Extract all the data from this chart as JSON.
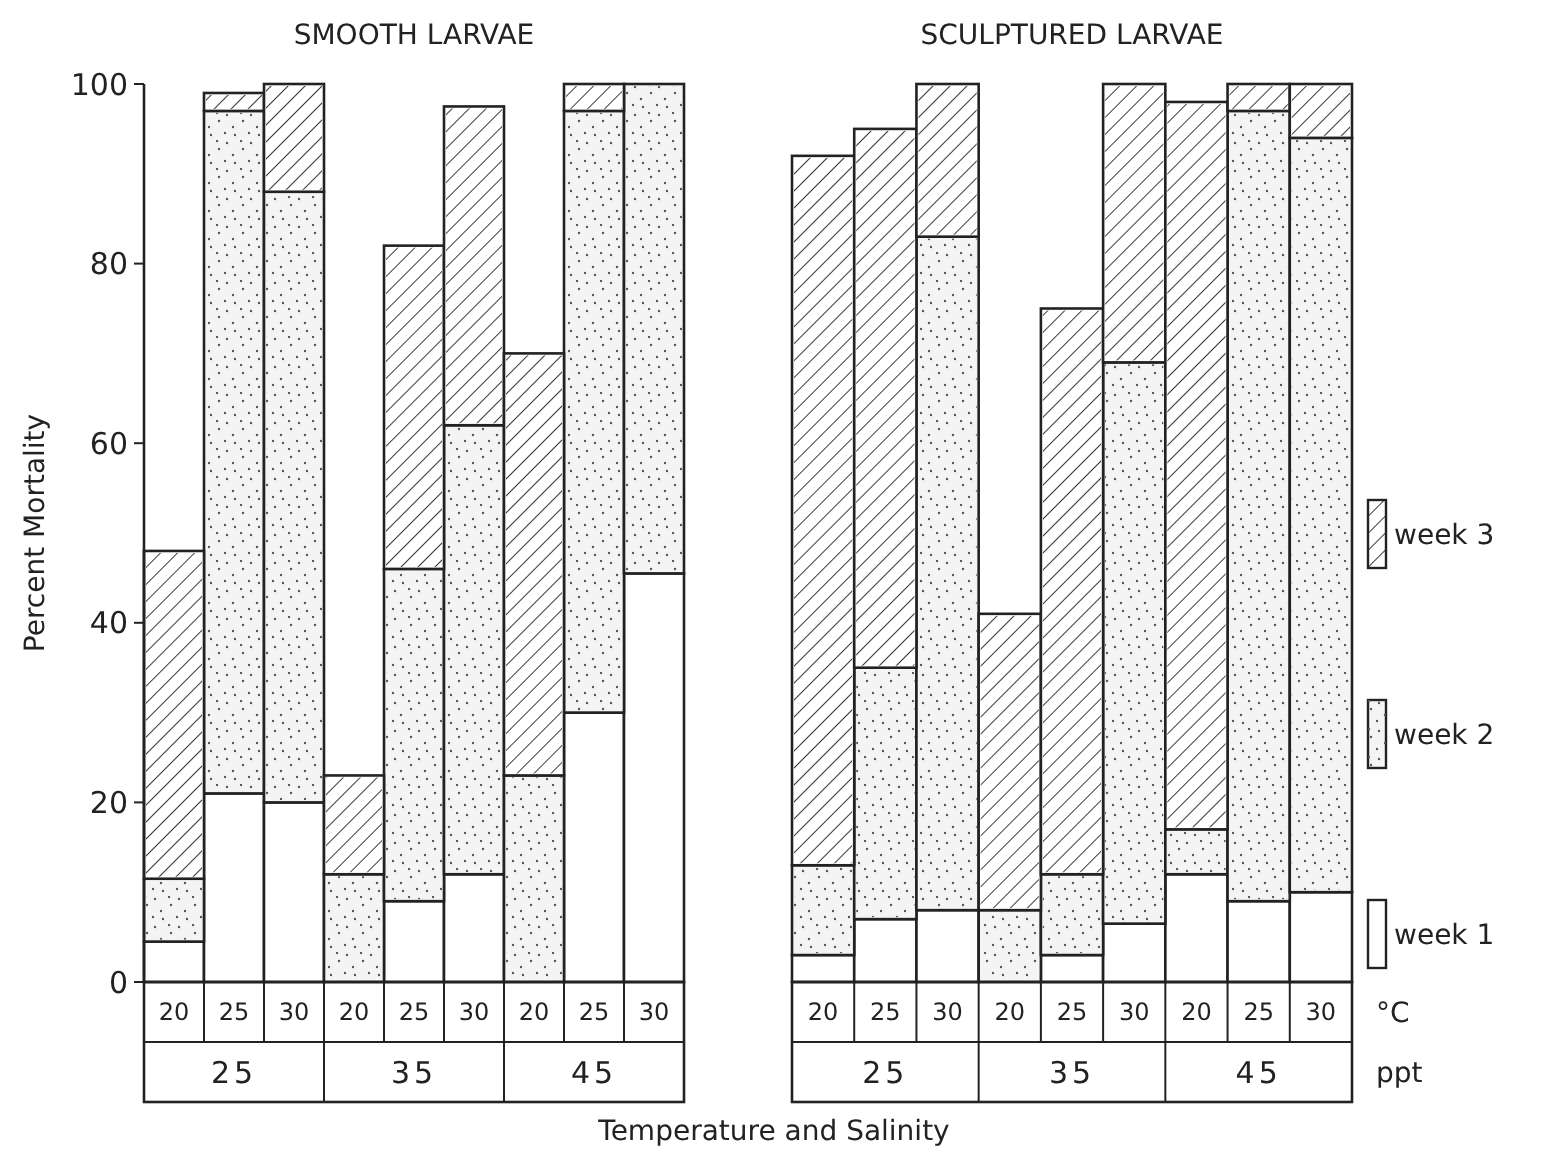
{
  "chart_data": [
    {
      "type": "bar",
      "title": "SMOOTH LARVAE",
      "ylabel": "Percent Mortality",
      "xlabel": "Temperature and Salinity",
      "stacked": true,
      "categories": [
        "20",
        "25",
        "30",
        "20",
        "25",
        "30",
        "20",
        "25",
        "30"
      ],
      "ylim": [
        0,
        100
      ],
      "yticks": [
        0,
        20,
        40,
        60,
        80,
        100
      ],
      "grid": false,
      "legend": false,
      "annotations": [
        "25",
        "35",
        "45"
      ],
      "series": [
        {
          "color": "#ffffff",
          "values": [
            4.5,
            21,
            20,
            0,
            9,
            12,
            0,
            30,
            45.5
          ]
        },
        {
          "color": "#f4f4f4",
          "values": [
            7,
            76,
            68,
            12,
            37,
            50,
            23,
            67,
            54.5
          ]
        },
        {
          "color": "#ffffff",
          "values": [
            36.5,
            2,
            12,
            11,
            36,
            35.5,
            47,
            3,
            0
          ]
        }
      ]
    },
    {
      "type": "bar",
      "title": "SCULPTURED LARVAE",
      "stacked": true,
      "categories": [
        "20",
        "25",
        "30",
        "20",
        "25",
        "30",
        "20",
        "25",
        "30"
      ],
      "ylim": [
        0,
        100
      ],
      "tick_labels": "x",
      "grid": false,
      "legend": "right",
      "annotations": [
        "25",
        "35",
        "45",
        "°C",
        "ppt"
      ],
      "series": [
        {
          "name": "week 1",
          "color": "#ffffff",
          "values": [
            3,
            7,
            8,
            0,
            3,
            6.5,
            12,
            9,
            10
          ]
        },
        {
          "name": "week 2",
          "color": "#f4f4f4",
          "values": [
            10,
            28,
            75,
            8,
            9,
            62.5,
            5,
            88,
            84
          ]
        },
        {
          "name": "week 3",
          "color": "#ffffff",
          "values": [
            79,
            60,
            17,
            33,
            63,
            31,
            81,
            3,
            6
          ]
        }
      ]
    }
  ]
}
